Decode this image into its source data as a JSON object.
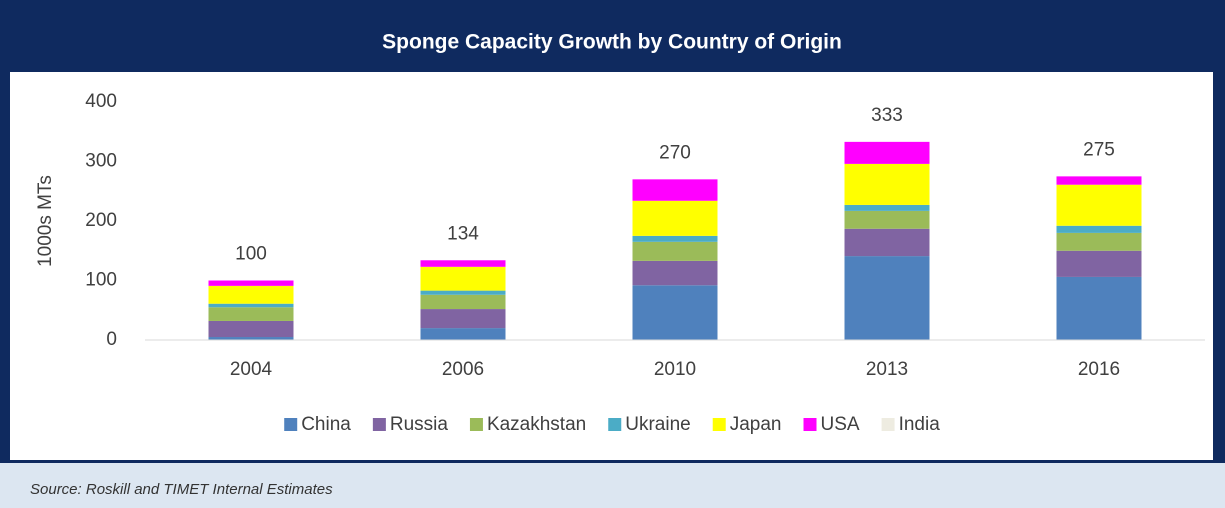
{
  "chart_data": {
    "type": "bar",
    "stacked": true,
    "title": "Sponge Capacity Growth by Country of Origin",
    "y_label": "1000s MTs",
    "source": "Source: Roskill and TIMET Internal Estimates",
    "categories": [
      "2004",
      "2006",
      "2010",
      "2013",
      "2016"
    ],
    "series": [
      {
        "name": "China",
        "color": "#4f81bd",
        "values": [
          5,
          20,
          92,
          141,
          106
        ]
      },
      {
        "name": "Russia",
        "color": "#8064a2",
        "values": [
          27,
          32,
          41,
          46,
          44
        ]
      },
      {
        "name": "Kazakhstan",
        "color": "#9bbb59",
        "values": [
          23,
          24,
          32,
          30,
          30
        ]
      },
      {
        "name": "Ukraine",
        "color": "#4bacc6",
        "values": [
          6,
          7,
          10,
          10,
          12
        ]
      },
      {
        "name": "Japan",
        "color": "#ffff00",
        "values": [
          30,
          40,
          59,
          69,
          69
        ]
      },
      {
        "name": "USA",
        "color": "#ff00ff",
        "values": [
          9,
          11,
          36,
          37,
          14
        ]
      },
      {
        "name": "India",
        "color": "#eeece1",
        "values": [
          0,
          0,
          0,
          0,
          0
        ]
      }
    ],
    "totals": [
      100,
      134,
      270,
      333,
      275
    ],
    "ylim": [
      0,
      400
    ],
    "yticks": [
      0,
      100,
      200,
      300,
      400
    ],
    "grid": false
  }
}
